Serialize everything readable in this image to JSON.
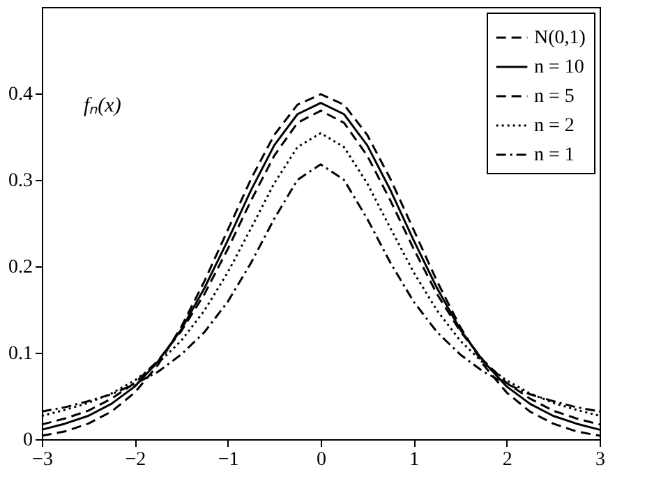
{
  "chart_data": {
    "type": "line",
    "x": [
      -3,
      -2.75,
      -2.5,
      -2.25,
      -2,
      -1.75,
      -1.5,
      -1.25,
      -1,
      -0.75,
      -0.5,
      -0.25,
      0,
      0.25,
      0.5,
      0.75,
      1,
      1.25,
      1.5,
      1.75,
      2,
      2.25,
      2.5,
      2.75,
      3
    ],
    "series": [
      {
        "name": "N(0,1)",
        "color": "#000000",
        "line_style": "dashed",
        "values": [
          0.004,
          0.009,
          0.018,
          0.032,
          0.054,
          0.086,
          0.13,
          0.183,
          0.242,
          0.301,
          0.352,
          0.387,
          0.399,
          0.387,
          0.352,
          0.301,
          0.242,
          0.183,
          0.13,
          0.086,
          0.054,
          0.032,
          0.018,
          0.009,
          0.004
        ]
      },
      {
        "name": "n = 10",
        "color": "#000000",
        "line_style": "solid",
        "values": [
          0.011,
          0.018,
          0.027,
          0.041,
          0.061,
          0.09,
          0.127,
          0.175,
          0.23,
          0.288,
          0.34,
          0.376,
          0.389,
          0.376,
          0.34,
          0.288,
          0.23,
          0.175,
          0.127,
          0.09,
          0.061,
          0.041,
          0.027,
          0.018,
          0.011
        ]
      },
      {
        "name": "n = 5",
        "color": "#000000",
        "line_style": "dashed",
        "values": [
          0.017,
          0.024,
          0.033,
          0.047,
          0.065,
          0.091,
          0.125,
          0.168,
          0.22,
          0.276,
          0.328,
          0.366,
          0.38,
          0.366,
          0.328,
          0.276,
          0.22,
          0.168,
          0.125,
          0.091,
          0.065,
          0.047,
          0.033,
          0.024,
          0.017
        ]
      },
      {
        "name": "n = 2",
        "color": "#000000",
        "line_style": "dotted",
        "values": [
          0.027,
          0.034,
          0.042,
          0.053,
          0.068,
          0.088,
          0.114,
          0.149,
          0.193,
          0.244,
          0.296,
          0.338,
          0.354,
          0.338,
          0.296,
          0.244,
          0.193,
          0.149,
          0.114,
          0.088,
          0.068,
          0.053,
          0.042,
          0.034,
          0.027
        ]
      },
      {
        "name": "n = 1",
        "color": "#000000",
        "line_style": "dashdot",
        "values": [
          0.032,
          0.037,
          0.044,
          0.052,
          0.064,
          0.078,
          0.098,
          0.124,
          0.159,
          0.204,
          0.255,
          0.3,
          0.318,
          0.3,
          0.255,
          0.204,
          0.159,
          0.124,
          0.098,
          0.078,
          0.064,
          0.052,
          0.044,
          0.037,
          0.032
        ]
      }
    ],
    "xlim": [
      -3,
      3
    ],
    "xticks": [
      -3,
      -2,
      -1,
      0,
      1,
      2,
      3
    ],
    "ylim": [
      0,
      0.5
    ],
    "yticks": [
      0,
      0.1,
      0.2,
      0.3,
      0.4
    ],
    "annotations": [
      "fₙ(x)"
    ],
    "legend": "top right",
    "grid": false
  }
}
